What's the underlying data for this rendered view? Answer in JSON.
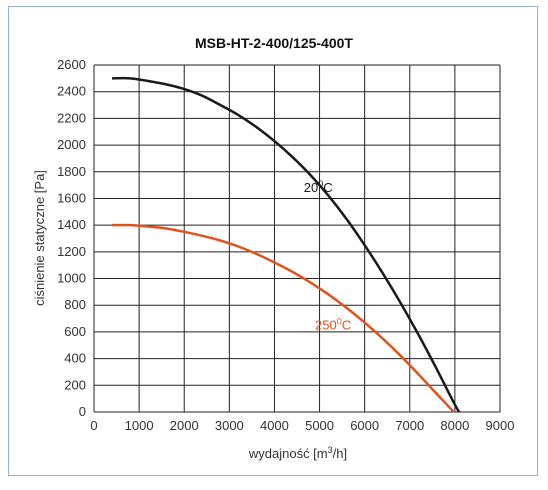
{
  "chart_data": {
    "type": "line",
    "title": "MSB-HT-2-400/125-400T",
    "xlabel": {
      "base": "wydajność [m",
      "sup": "3",
      "tail": "/h]"
    },
    "ylabel": "ciśnienie statyczne [Pa]",
    "xlim": [
      0,
      9000
    ],
    "ylim": [
      0,
      2600
    ],
    "x_ticks": [
      0,
      1000,
      2000,
      3000,
      4000,
      5000,
      6000,
      7000,
      8000,
      9000
    ],
    "y_ticks": [
      0,
      200,
      400,
      600,
      800,
      1000,
      1200,
      1400,
      1600,
      1800,
      2000,
      2200,
      2400,
      2600
    ],
    "grid": true,
    "series": [
      {
        "name": "20°C",
        "label": {
          "base": "20",
          "sup": "0",
          "tail": "C"
        },
        "color": "#1a1a1a",
        "x": [
          400,
          800,
          1200,
          1600,
          2000,
          2400,
          2800,
          3200,
          3600,
          4000,
          4400,
          4800,
          5200,
          5600,
          6000,
          6400,
          6800,
          7200,
          7600,
          8000,
          8230
        ],
        "y": [
          2500,
          2500,
          2480,
          2455,
          2420,
          2370,
          2300,
          2225,
          2135,
          2030,
          1910,
          1775,
          1620,
          1445,
          1250,
          1040,
          815,
          575,
          320,
          55,
          -75
        ]
      },
      {
        "name": "250°C",
        "label": {
          "base": "250",
          "sup": "0",
          "tail": "C"
        },
        "color": "#e0531f",
        "x": [
          400,
          800,
          1200,
          1600,
          2000,
          2400,
          2800,
          3200,
          3600,
          4000,
          4400,
          4800,
          5200,
          5600,
          6000,
          6400,
          6800,
          7200,
          7600,
          8000,
          8150
        ],
        "y": [
          1400,
          1400,
          1390,
          1375,
          1350,
          1320,
          1285,
          1240,
          1185,
          1120,
          1050,
          970,
          880,
          780,
          670,
          550,
          420,
          280,
          135,
          -10,
          -75
        ]
      }
    ]
  }
}
